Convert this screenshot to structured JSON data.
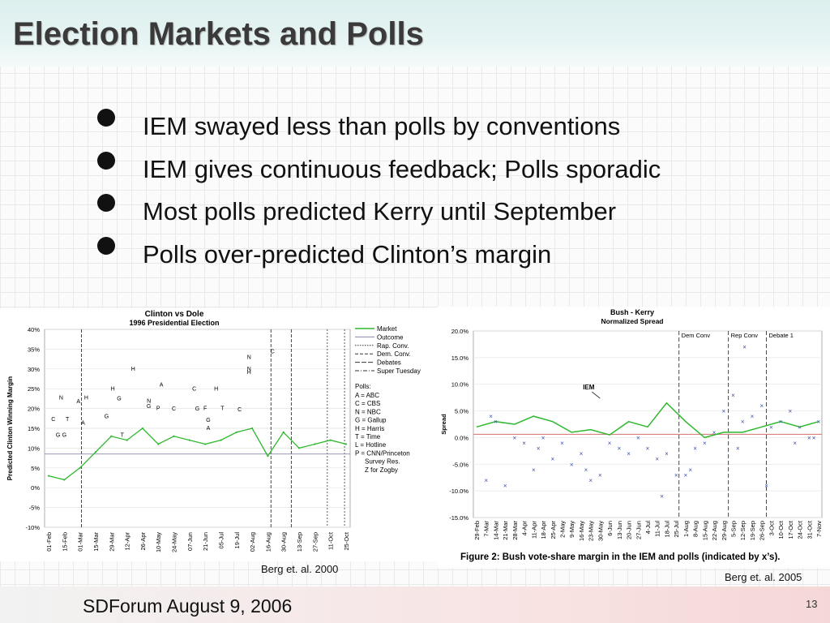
{
  "slide": {
    "title": "Election Markets and Polls",
    "bullets": [
      "IEM swayed less than polls by conventions",
      "IEM gives continuous feedback; Polls sporadic",
      "Most polls predicted Kerry until September",
      "Polls over-predicted Clinton’s margin"
    ],
    "caption_left": "Berg et. al.  2000",
    "caption_right": "Berg et. al.  2005",
    "footer": "SDForum  August 9, 2006",
    "page_number": "13"
  },
  "chart_data": [
    {
      "type": "line",
      "title": "Clinton vs Dole",
      "subtitle": "1996 Presidential Election",
      "ylabel": "Predicted Clinton Winning Margin",
      "ylim": [
        -10,
        40
      ],
      "y_ticks": [
        "40%",
        "35%",
        "30%",
        "25%",
        "20%",
        "15%",
        "10%",
        "5%",
        "0%",
        "-5%",
        "-10%"
      ],
      "x_ticks": [
        "01-Feb",
        "15-Feb",
        "01-Mar",
        "15-Mar",
        "29-Mar",
        "12-Apr",
        "26-Apr",
        "10-May",
        "24-May",
        "07-Jun",
        "21-Jun",
        "05-Jul",
        "19-Jul",
        "02-Aug",
        "16-Aug",
        "30-Aug",
        "13-Sep",
        "27-Sep",
        "11-Oct",
        "25-Oct"
      ],
      "legend": [
        "Market",
        "Outcome",
        "Rap. Conv.",
        "Dem. Conv.",
        "Debates",
        "Super Tuesday"
      ],
      "poll_key_title": "Polls:",
      "poll_key": [
        "A = ABC",
        "C = CBS",
        "N = NBC",
        "G = Gallup",
        "H = Harris",
        "T = Time",
        "L = Hotline",
        "P = CNN/Princeton",
        "Survey Res.",
        "Z for Zogby"
      ],
      "outcome": 8.5,
      "series": [
        {
          "name": "Market",
          "color": "#2eb82e",
          "x": [
            0,
            1,
            2,
            3,
            4,
            5,
            6,
            7,
            8,
            9,
            10,
            11,
            12,
            13,
            14,
            15,
            16,
            17,
            18,
            19
          ],
          "values": [
            3,
            2,
            5,
            9,
            13,
            12,
            15,
            11,
            13,
            12,
            11,
            12,
            14,
            15,
            8,
            14,
            10,
            11,
            12,
            11
          ]
        }
      ],
      "polls": [
        {
          "t": "C",
          "x": 14.3,
          "y": 34
        },
        {
          "t": "N",
          "x": 12.8,
          "y": 32.5
        },
        {
          "t": "H",
          "x": 5.4,
          "y": 29.5
        },
        {
          "t": "N",
          "x": 12.8,
          "y": 29.5
        },
        {
          "t": "H",
          "x": 12.8,
          "y": 28.7
        },
        {
          "t": "A",
          "x": 7.2,
          "y": 25.6
        },
        {
          "t": "H",
          "x": 4.1,
          "y": 24.5
        },
        {
          "t": "C",
          "x": 9.3,
          "y": 24.5
        },
        {
          "t": "H",
          "x": 10.7,
          "y": 24.5
        },
        {
          "t": "N",
          "x": 0.8,
          "y": 22.3
        },
        {
          "t": "A",
          "x": 1.9,
          "y": 21.4
        },
        {
          "t": "H",
          "x": 2.4,
          "y": 22.3
        },
        {
          "t": "G",
          "x": 4.5,
          "y": 22.1
        },
        {
          "t": "N",
          "x": 6.4,
          "y": 21.5
        },
        {
          "t": "G",
          "x": 6.4,
          "y": 20.1
        },
        {
          "t": "P",
          "x": 7.0,
          "y": 19.6
        },
        {
          "t": "C",
          "x": 8.0,
          "y": 19.5
        },
        {
          "t": "G",
          "x": 9.5,
          "y": 19.5
        },
        {
          "t": "F",
          "x": 10.0,
          "y": 19.6
        },
        {
          "t": "T",
          "x": 11.1,
          "y": 19.6
        },
        {
          "t": "C",
          "x": 12.2,
          "y": 19.3
        },
        {
          "t": "G",
          "x": 3.7,
          "y": 17.6
        },
        {
          "t": "T",
          "x": 1.2,
          "y": 16.8
        },
        {
          "t": "C",
          "x": 0.3,
          "y": 16.8
        },
        {
          "t": "G",
          "x": 10.2,
          "y": 16.6
        },
        {
          "t": "A",
          "x": 10.2,
          "y": 14.6
        },
        {
          "t": "A",
          "x": 2.2,
          "y": 15.9
        },
        {
          "t": "G",
          "x": 0.6,
          "y": 12.8
        },
        {
          "t": "G",
          "x": 1.0,
          "y": 12.8
        },
        {
          "t": "T",
          "x": 4.7,
          "y": 12.8
        }
      ]
    },
    {
      "type": "scatter",
      "title": "Bush - Kerry",
      "subtitle": "Normalized Spread",
      "figure_caption": "Figure 2:  Bush vote-share margin in the IEM and polls (indicated by x’s).",
      "ylabel": "Spread",
      "ylim": [
        -15,
        20
      ],
      "y_ticks": [
        "20.0%",
        "15.0%",
        "10.0%",
        "5.0%",
        "0.0%",
        "-5.0%",
        "-10.0%",
        "-15.0%"
      ],
      "x_ticks": [
        "29-Feb",
        "7-Mar",
        "14-Mar",
        "21-Mar",
        "28-Mar",
        "4-Apr",
        "11-Apr",
        "18-Apr",
        "25-Apr",
        "2-May",
        "9-May",
        "16-May",
        "23-May",
        "30-May",
        "6-Jun",
        "13-Jun",
        "20-Jun",
        "27-Jun",
        "4-Jul",
        "11-Jul",
        "18-Jul",
        "25-Jul",
        "1-Aug",
        "8-Aug",
        "15-Aug",
        "22-Aug",
        "29-Aug",
        "5-Sep",
        "12-Sep",
        "19-Sep",
        "26-Sep",
        "3-Oct",
        "10-Oct",
        "17-Oct",
        "24-Oct",
        "31-Oct",
        "7-Nov"
      ],
      "event_labels": [
        "Dem Conv",
        "Rep Conv",
        "Debate 1"
      ],
      "annotation": "IEM",
      "series": [
        {
          "name": "IEM",
          "color": "#2eb82e",
          "x": [
            0,
            2,
            4,
            6,
            8,
            10,
            12,
            14,
            16,
            18,
            20,
            22,
            24,
            26,
            28,
            30,
            32,
            34,
            36
          ],
          "values": [
            2,
            3,
            2.5,
            4,
            3,
            1,
            1.5,
            0.5,
            3,
            2,
            6.5,
            3,
            0,
            1,
            1,
            2,
            3,
            2,
            3
          ]
        },
        {
          "name": "Polls",
          "color": "#3a4fb0",
          "x": [
            1,
            2,
            3,
            4,
            5,
            6,
            7,
            8,
            9,
            10,
            11,
            12,
            13,
            14,
            15,
            16,
            17,
            18,
            19,
            20,
            21,
            22,
            23,
            24,
            25,
            26,
            27,
            28,
            29,
            30,
            31,
            32,
            33,
            34,
            35,
            36,
            1.5,
            6.5,
            11.5,
            19.5,
            22.5,
            27.5,
            30.5,
            33.5,
            35.5,
            28.2
          ],
          "values": [
            -8,
            3,
            -9,
            0,
            -1,
            -6,
            0,
            -4,
            -1,
            -5,
            -3,
            -8,
            -7,
            -1,
            -2,
            -3,
            0,
            -2,
            -4,
            -3,
            -7,
            -7,
            -2,
            -1,
            1,
            5,
            8,
            3,
            4,
            6,
            2,
            3,
            5,
            2,
            0,
            3,
            4,
            -2,
            -6,
            -11,
            -6,
            -2,
            -9,
            -1,
            0,
            17
          ]
        }
      ]
    }
  ]
}
